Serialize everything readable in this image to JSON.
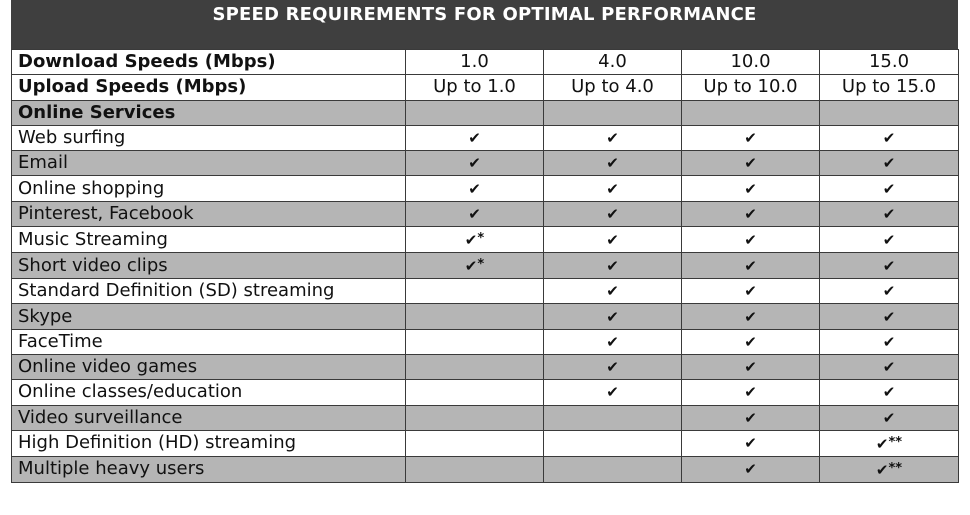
{
  "title": "SPEED REQUIREMENTS FOR OPTIMAL PERFORMANCE",
  "colors": {
    "title_bg": "#3f3f3f",
    "title_text": "#ffffff",
    "shaded_row": "#b5b5b5",
    "plain_row": "#ffffff",
    "border": "#3a3a3a"
  },
  "check_glyph": "✔",
  "chart_data": {
    "type": "table",
    "title": "SPEED REQUIREMENTS FOR OPTIMAL PERFORMANCE",
    "header_rows": [
      {
        "label": "Download Speeds (Mbps)",
        "values": [
          "1.0",
          "4.0",
          "10.0",
          "15.0"
        ]
      },
      {
        "label": "Upload Speeds (Mbps)",
        "values": [
          "Up to 1.0",
          "Up to 4.0",
          "Up to 10.0",
          "Up to 15.0"
        ]
      }
    ],
    "section_label": "Online Services",
    "columns": [
      "1.0",
      "4.0",
      "10.0",
      "15.0"
    ],
    "rows": [
      {
        "service": "Web surfing",
        "marks": [
          "check",
          "check",
          "check",
          "check"
        ]
      },
      {
        "service": "Email",
        "marks": [
          "check",
          "check",
          "check",
          "check"
        ]
      },
      {
        "service": "Online shopping",
        "marks": [
          "check",
          "check",
          "check",
          "check"
        ]
      },
      {
        "service": "Pinterest, Facebook",
        "marks": [
          "check",
          "check",
          "check",
          "check"
        ]
      },
      {
        "service": "Music Streaming",
        "marks": [
          "check*",
          "check",
          "check",
          "check"
        ]
      },
      {
        "service": "Short video clips",
        "marks": [
          "check*",
          "check",
          "check",
          "check"
        ]
      },
      {
        "service": "Standard Definition (SD) streaming",
        "marks": [
          "",
          "check",
          "check",
          "check"
        ]
      },
      {
        "service": "Skype",
        "marks": [
          "",
          "check",
          "check",
          "check"
        ]
      },
      {
        "service": "FaceTime",
        "marks": [
          "",
          "check",
          "check",
          "check"
        ]
      },
      {
        "service": "Online video games",
        "marks": [
          "",
          "check",
          "check",
          "check"
        ]
      },
      {
        "service": "Online classes/education",
        "marks": [
          "",
          "check",
          "check",
          "check"
        ]
      },
      {
        "service": "Video surveillance",
        "marks": [
          "",
          "",
          "check",
          "check"
        ]
      },
      {
        "service": "High Definition (HD) streaming",
        "marks": [
          "",
          "",
          "check",
          "check**"
        ]
      },
      {
        "service": "Multiple heavy users",
        "marks": [
          "",
          "",
          "check",
          "check**"
        ]
      }
    ]
  }
}
